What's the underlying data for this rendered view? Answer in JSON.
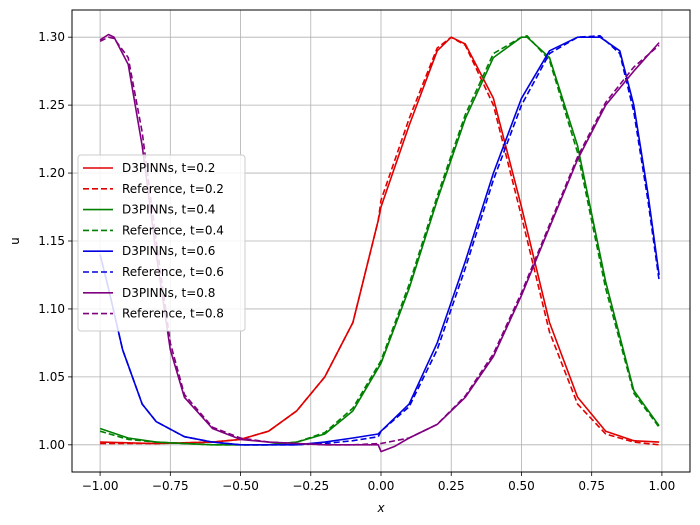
{
  "chart_data": {
    "type": "line",
    "xlabel": "x",
    "ylabel": "u",
    "xlim": [
      -1.1,
      1.1
    ],
    "ylim": [
      0.98,
      1.32
    ],
    "grid": true,
    "legend_position": "center-left",
    "x_ticks": [
      -1.0,
      -0.75,
      -0.5,
      -0.25,
      0.0,
      0.25,
      0.5,
      0.75,
      1.0
    ],
    "x_tick_labels": [
      "−1.00",
      "−0.75",
      "−0.50",
      "−0.25",
      "0.00",
      "0.25",
      "0.50",
      "0.75",
      "1.00"
    ],
    "y_ticks": [
      1.0,
      1.05,
      1.1,
      1.15,
      1.2,
      1.25,
      1.3
    ],
    "y_tick_labels": [
      "1.00",
      "1.05",
      "1.10",
      "1.15",
      "1.20",
      "1.25",
      "1.30"
    ],
    "series": [
      {
        "name": "D3PINNs, t=0.2",
        "color": "#e00000",
        "style": "solid",
        "x": [
          -1.0,
          -0.8,
          -0.6,
          -0.5,
          -0.4,
          -0.3,
          -0.2,
          -0.1,
          -0.01,
          0.0,
          0.1,
          0.2,
          0.25,
          0.3,
          0.4,
          0.5,
          0.6,
          0.7,
          0.8,
          0.9,
          0.99
        ],
        "y": [
          1.002,
          1.001,
          1.002,
          1.004,
          1.01,
          1.025,
          1.05,
          1.09,
          1.165,
          1.175,
          1.235,
          1.29,
          1.3,
          1.295,
          1.255,
          1.175,
          1.09,
          1.035,
          1.01,
          1.003,
          1.002
        ]
      },
      {
        "name": "Reference, t=0.2",
        "color": "#e00000",
        "style": "dashed",
        "x": [
          -1.0,
          -0.8,
          -0.6,
          -0.5,
          -0.4,
          -0.3,
          -0.2,
          -0.1,
          -0.01,
          0.0,
          0.1,
          0.2,
          0.25,
          0.3,
          0.4,
          0.5,
          0.6,
          0.7,
          0.8,
          0.9,
          0.99
        ],
        "y": [
          1.001,
          1.001,
          1.002,
          1.004,
          1.01,
          1.025,
          1.05,
          1.09,
          1.165,
          1.18,
          1.24,
          1.292,
          1.3,
          1.294,
          1.25,
          1.168,
          1.083,
          1.03,
          1.008,
          1.002,
          1.0
        ]
      },
      {
        "name": "D3PINNs, t=0.4",
        "color": "#008000",
        "style": "solid",
        "x": [
          -1.0,
          -0.9,
          -0.8,
          -0.7,
          -0.6,
          -0.5,
          -0.4,
          -0.3,
          -0.2,
          -0.1,
          0.0,
          0.1,
          0.2,
          0.3,
          0.4,
          0.5,
          0.52,
          0.6,
          0.7,
          0.8,
          0.9,
          0.99
        ],
        "y": [
          1.012,
          1.005,
          1.002,
          1.001,
          1.0,
          1.0,
          1.0,
          1.002,
          1.008,
          1.025,
          1.06,
          1.115,
          1.18,
          1.24,
          1.285,
          1.3,
          1.3,
          1.285,
          1.22,
          1.12,
          1.04,
          1.014
        ]
      },
      {
        "name": "Reference, t=0.4",
        "color": "#008000",
        "style": "dashed",
        "x": [
          -1.0,
          -0.9,
          -0.8,
          -0.7,
          -0.6,
          -0.5,
          -0.4,
          -0.3,
          -0.2,
          -0.1,
          0.0,
          0.1,
          0.2,
          0.3,
          0.4,
          0.5,
          0.52,
          0.6,
          0.7,
          0.8,
          0.9,
          0.99
        ],
        "y": [
          1.01,
          1.004,
          1.002,
          1.001,
          1.0,
          1.0,
          1.0,
          1.002,
          1.009,
          1.027,
          1.062,
          1.118,
          1.183,
          1.243,
          1.288,
          1.3,
          1.301,
          1.283,
          1.215,
          1.115,
          1.038,
          1.013
        ]
      },
      {
        "name": "D3PINNs, t=0.6",
        "color": "#0000e0",
        "style": "solid",
        "x": [
          -1.0,
          -0.97,
          -0.92,
          -0.85,
          -0.8,
          -0.7,
          -0.6,
          -0.5,
          -0.4,
          -0.3,
          -0.2,
          -0.1,
          -0.01,
          0.0,
          0.1,
          0.2,
          0.3,
          0.4,
          0.5,
          0.6,
          0.7,
          0.78,
          0.85,
          0.9,
          0.95,
          0.99
        ],
        "y": [
          1.14,
          1.115,
          1.07,
          1.03,
          1.017,
          1.006,
          1.002,
          1.0,
          1.0,
          1.0,
          1.002,
          1.005,
          1.008,
          1.01,
          1.03,
          1.075,
          1.135,
          1.2,
          1.255,
          1.29,
          1.3,
          1.3,
          1.29,
          1.25,
          1.185,
          1.125
        ]
      },
      {
        "name": "Reference, t=0.6",
        "color": "#0000e0",
        "style": "dashed",
        "x": [
          -1.0,
          -0.97,
          -0.92,
          -0.85,
          -0.8,
          -0.7,
          -0.6,
          -0.5,
          -0.4,
          -0.3,
          -0.2,
          -0.1,
          -0.01,
          0.0,
          0.1,
          0.2,
          0.3,
          0.4,
          0.5,
          0.6,
          0.7,
          0.78,
          0.85,
          0.9,
          0.95,
          0.99
        ],
        "y": [
          1.14,
          1.115,
          1.07,
          1.03,
          1.017,
          1.006,
          1.002,
          1.0,
          1.0,
          1.0,
          1.001,
          1.003,
          1.006,
          1.01,
          1.028,
          1.07,
          1.13,
          1.195,
          1.25,
          1.288,
          1.3,
          1.301,
          1.288,
          1.245,
          1.18,
          1.121
        ]
      },
      {
        "name": "D3PINNs, t=0.8",
        "color": "#800080",
        "style": "solid",
        "x": [
          -1.0,
          -0.97,
          -0.95,
          -0.9,
          -0.85,
          -0.8,
          -0.75,
          -0.7,
          -0.6,
          -0.5,
          -0.4,
          -0.3,
          -0.2,
          -0.1,
          -0.01,
          0.0,
          0.05,
          0.1,
          0.2,
          0.3,
          0.4,
          0.5,
          0.6,
          0.7,
          0.8,
          0.9,
          0.99
        ],
        "y": [
          1.298,
          1.302,
          1.3,
          1.28,
          1.22,
          1.14,
          1.07,
          1.035,
          1.012,
          1.004,
          1.002,
          1.001,
          1.0,
          1.0,
          1.0,
          0.995,
          0.999,
          1.005,
          1.015,
          1.035,
          1.065,
          1.11,
          1.16,
          1.21,
          1.25,
          1.275,
          1.296
        ]
      },
      {
        "name": "Reference, t=0.8",
        "color": "#800080",
        "style": "dashed",
        "x": [
          -1.0,
          -0.97,
          -0.95,
          -0.9,
          -0.85,
          -0.8,
          -0.75,
          -0.7,
          -0.6,
          -0.5,
          -0.4,
          -0.3,
          -0.2,
          -0.1,
          0.0,
          0.1,
          0.2,
          0.3,
          0.4,
          0.5,
          0.6,
          0.7,
          0.8,
          0.9,
          0.99
        ],
        "y": [
          1.297,
          1.3,
          1.299,
          1.285,
          1.23,
          1.15,
          1.075,
          1.037,
          1.013,
          1.005,
          1.002,
          1.001,
          1.0,
          1.0,
          1.001,
          1.005,
          1.015,
          1.036,
          1.067,
          1.112,
          1.162,
          1.212,
          1.252,
          1.278,
          1.294
        ]
      }
    ]
  }
}
